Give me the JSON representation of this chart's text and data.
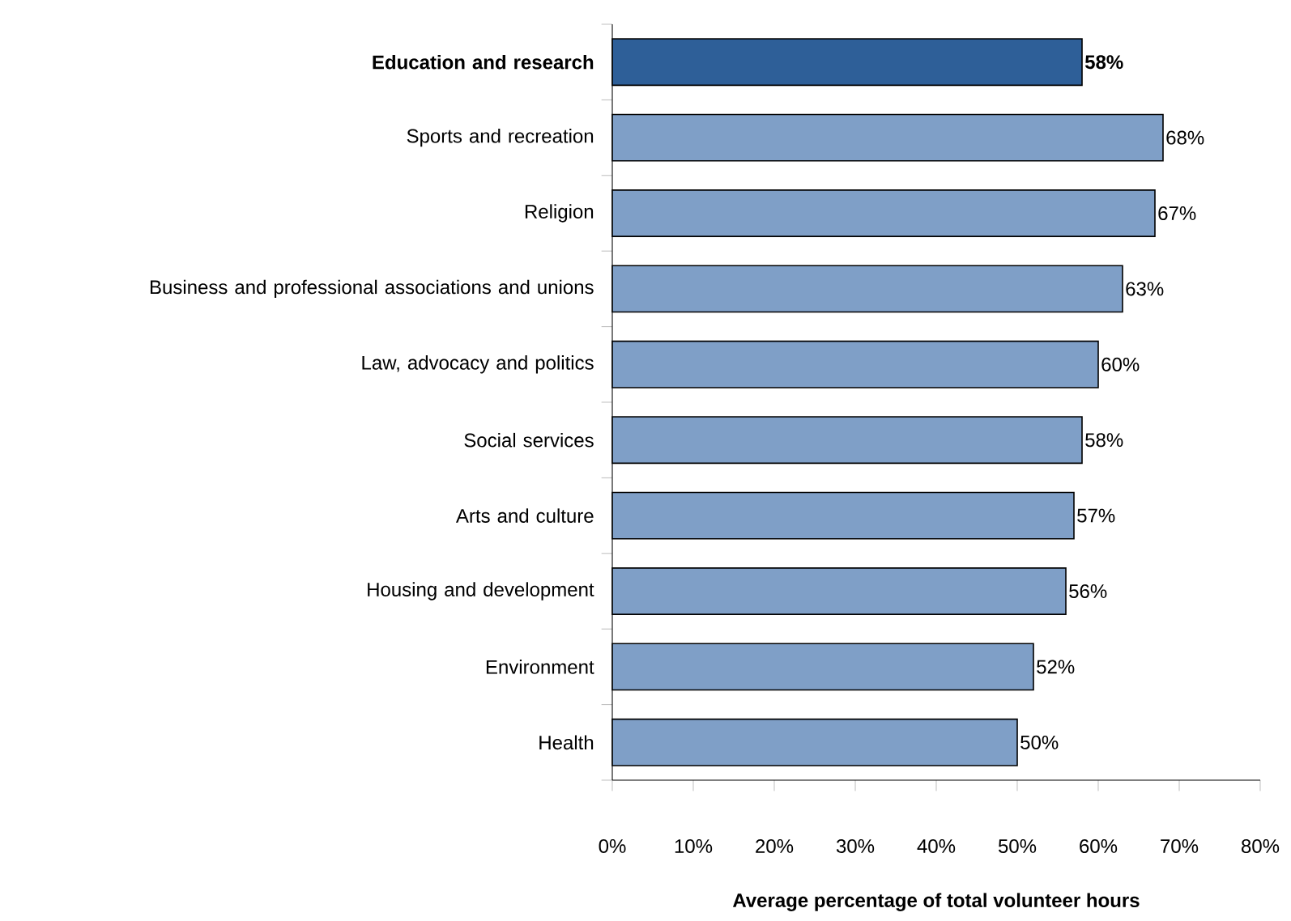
{
  "chart_data": {
    "type": "bar",
    "orientation": "horizontal",
    "categories": [
      "Education and research",
      "Sports and recreation",
      "Religion",
      "Business and professional associations and unions",
      "Law, advocacy and politics",
      "Social services",
      "Arts and culture",
      "Housing and development",
      "Environment",
      "Health"
    ],
    "values": [
      58,
      68,
      67,
      63,
      60,
      58,
      57,
      56,
      52,
      50
    ],
    "colors": [
      "#2e5f98",
      "#7f9fc7",
      "#7f9fc7",
      "#7f9fc7",
      "#7f9fc7",
      "#7f9fc7",
      "#7f9fc7",
      "#7f9fc7",
      "#7f9fc7",
      "#7f9fc7"
    ],
    "value_labels": [
      "58%",
      "68%",
      "67%",
      "63%",
      "60%",
      "58%",
      "57%",
      "56%",
      "52%",
      "50%"
    ],
    "xlim": [
      0,
      80
    ],
    "xticks": [
      {
        "value": 0,
        "label": "0%"
      },
      {
        "value": 10,
        "label": "10%"
      },
      {
        "value": 20,
        "label": "20%"
      },
      {
        "value": 30,
        "label": "30%"
      },
      {
        "value": 40,
        "label": "40%"
      },
      {
        "value": 50,
        "label": "50%"
      },
      {
        "value": 60,
        "label": "60%"
      },
      {
        "value": 70,
        "label": "70%"
      },
      {
        "value": 80,
        "label": "80%"
      }
    ],
    "xlabel": "Average percentage of total volunteer hours",
    "grid": false
  }
}
